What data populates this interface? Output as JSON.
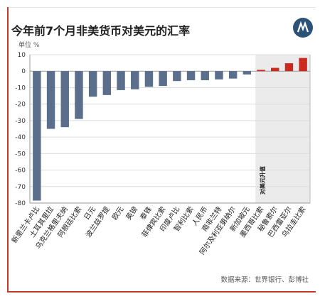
{
  "header": {
    "title": "今年前7个月非美货币对美元的汇率",
    "unit": "单位 %"
  },
  "footer": {
    "source": "数据来源：世界银行、彭博社"
  },
  "logo": {
    "icon": "publisher-logo-icon",
    "color": "#2b5377"
  },
  "chart_data": {
    "type": "bar",
    "title": "今年前7个月非美货币对美元的汇率",
    "ylabel": "单位 %",
    "xlabel": "",
    "ylim": [
      -80,
      10
    ],
    "yticks": [
      10,
      0,
      -10,
      -20,
      -30,
      -40,
      -50,
      -60,
      -70,
      -80
    ],
    "grid": true,
    "categories": [
      "新里兰卡卢比",
      "土耳其里拉",
      "乌克兰格里夫纳",
      "阿根廷比索",
      "日元",
      "波兰兹罗提",
      "欧元",
      "英镑",
      "泰铢",
      "菲律宾比索",
      "印度卢比",
      "智利比索",
      "人民币",
      "南非兰特",
      "阿尔及利亚第纳尔",
      "新加坡元",
      "墨西哥比索",
      "秘鲁索尔",
      "巴西雷亚尔",
      "乌拉圭比索"
    ],
    "values": [
      -78.5,
      -35,
      -34,
      -29,
      -15.5,
      -14.5,
      -11.5,
      -11,
      -9.5,
      -9,
      -6,
      -5.5,
      -5.5,
      -5,
      -4.5,
      -2,
      0.8,
      2,
      4.8,
      8
    ],
    "colors": {
      "depreciation": "#5b6f8c",
      "appreciation": "#cc2a1f",
      "highlight_band": "#ebebeb"
    },
    "annotation": "对美元升值"
  }
}
